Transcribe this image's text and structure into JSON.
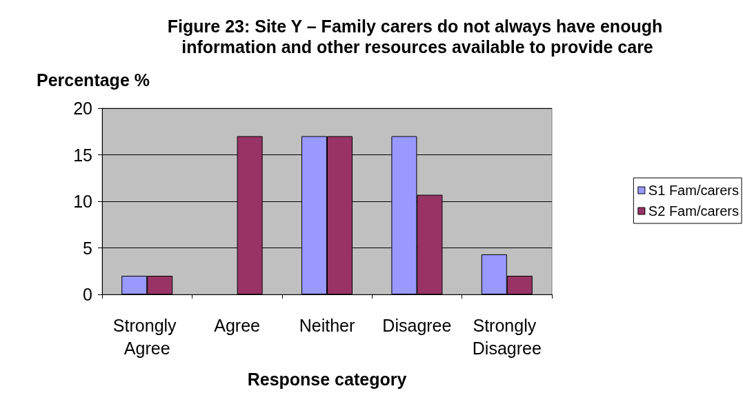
{
  "chart_data": {
    "type": "bar",
    "title": "Figure 23: Site Y – Family carers do not always have enough information and other resources available to provide care",
    "xlabel": "Response category",
    "ylabel": "Percentage %",
    "categories": [
      "Strongly Agree",
      "Agree",
      "Neither",
      "Disagree",
      "Strongly Disagree"
    ],
    "series": [
      {
        "name": "S1 Fam/carers",
        "color": "#9999ff",
        "values": [
          2,
          null,
          17,
          17,
          4.3
        ]
      },
      {
        "name": "S2 Fam/carers",
        "color": "#993366",
        "values": [
          2,
          17,
          17,
          10.7,
          2
        ]
      }
    ],
    "ylim": [
      0,
      20
    ],
    "yticks": [
      0,
      5,
      10,
      15,
      20
    ],
    "grid": "y",
    "legend": "right"
  }
}
